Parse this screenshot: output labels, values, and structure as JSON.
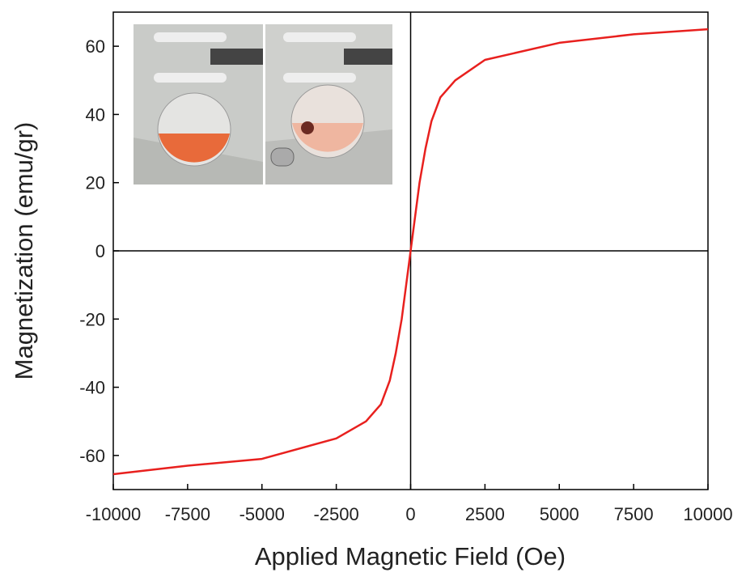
{
  "chart_data": {
    "type": "line",
    "x_label": "Applied Magnetic Field (Oe)",
    "y_label": "Magnetization (emu/gr)",
    "x": [
      -10000,
      -7500,
      -5000,
      -2500,
      -1500,
      -1000,
      -700,
      -500,
      -300,
      -150,
      0,
      150,
      300,
      500,
      700,
      1000,
      1500,
      2500,
      5000,
      7500,
      10000
    ],
    "series": [
      {
        "color": "#e8201e",
        "values": [
          -65.5,
          -63,
          -61,
          -55,
          -50,
          -45,
          -38,
          -30,
          -20,
          -10,
          0,
          10,
          20,
          30,
          38,
          45,
          50,
          56,
          61,
          63.5,
          65
        ]
      }
    ],
    "xlim": [
      -10000,
      10000
    ],
    "xticks": [
      -10000,
      -7500,
      -5000,
      -2500,
      0,
      2500,
      5000,
      7500,
      10000
    ],
    "ylim": [
      -70,
      70
    ],
    "yticks": [
      -60,
      -40,
      -20,
      0,
      20,
      40,
      60
    ],
    "grid": false
  }
}
